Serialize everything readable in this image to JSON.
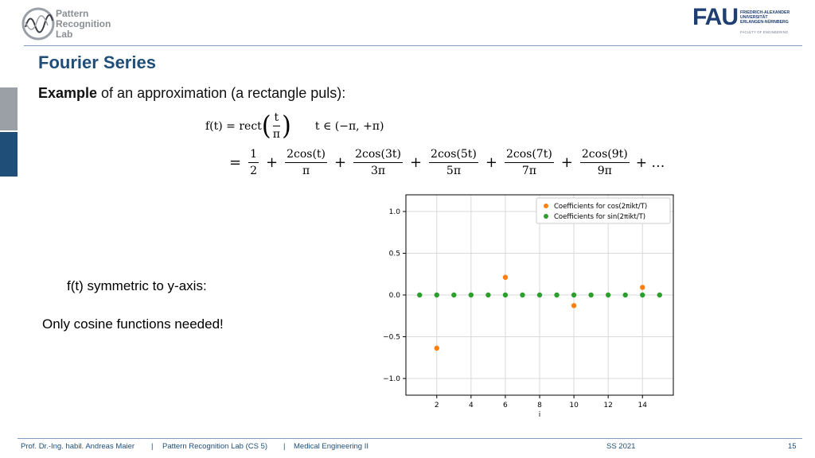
{
  "header": {
    "logo_lines": [
      "Pattern",
      "Recognition",
      "Lab"
    ],
    "fau_text": "FAU",
    "fau_lines": [
      "FRIEDRICH-ALEXANDER",
      "UNIVERSITÄT",
      "ERLANGEN-NÜRNBERG"
    ],
    "fau_faculty": "FACULTY OF ENGINEERING"
  },
  "slide": {
    "title": "Fourier Series",
    "intro_bold": "Example",
    "intro_rest": " of an approximation (a rectangle puls):",
    "note1": "f(t) symmetric to y-axis:",
    "note2": "Only cosine functions needed!"
  },
  "formula": {
    "lhs": "f(t) = rect",
    "rect_num": "t",
    "rect_den": "π",
    "domain": "t ∈ (−π, +π)",
    "terms": [
      {
        "num": "1",
        "den": "2"
      },
      {
        "num": "2cos(t)",
        "den": "π"
      },
      {
        "num": "2cos(3t)",
        "den": "3π"
      },
      {
        "num": "2cos(5t)",
        "den": "5π"
      },
      {
        "num": "2cos(7t)",
        "den": "7π"
      },
      {
        "num": "2cos(9t)",
        "den": "9π"
      }
    ],
    "tail": "+ …"
  },
  "chart_data": {
    "type": "scatter",
    "xlabel": "i",
    "ylabel": "",
    "xlim": [
      0.2,
      15.8
    ],
    "ylim": [
      -1.2,
      1.2
    ],
    "xticks": [
      2,
      4,
      6,
      8,
      10,
      12,
      14
    ],
    "yticks": [
      -1.0,
      -0.5,
      0.0,
      0.5,
      1.0
    ],
    "grid": true,
    "legend_position": "top-right",
    "series": [
      {
        "name": "Coefficients for cos(2πikt/T)",
        "color": "#ff7f0e",
        "x": [
          2,
          6,
          10,
          14
        ],
        "y": [
          -0.637,
          0.212,
          -0.127,
          0.091
        ]
      },
      {
        "name": "Coefficients for sin(2πikt/T)",
        "color": "#2ca02c",
        "x": [
          1,
          2,
          3,
          4,
          5,
          6,
          7,
          8,
          9,
          10,
          11,
          12,
          13,
          14,
          15
        ],
        "y": [
          0,
          0,
          0,
          0,
          0,
          0,
          0,
          0,
          0,
          0,
          0,
          0,
          0,
          0,
          0
        ]
      }
    ]
  },
  "footer": {
    "author": "Prof. Dr.-Ing. habil. Andreas Maier",
    "sep1": "|",
    "lab": "Pattern Recognition Lab (CS 5)",
    "sep2": "|",
    "course": "Medical Engineering II",
    "term": "SS 2021",
    "page": "15"
  }
}
